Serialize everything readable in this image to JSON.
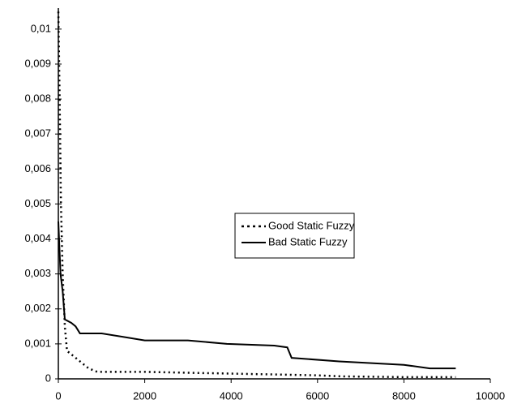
{
  "chart_data": {
    "type": "line",
    "xlim": [
      0,
      10000
    ],
    "xticks": [
      0,
      2000,
      4000,
      6000,
      8000,
      10000
    ],
    "ylim": [
      0,
      0.0106
    ],
    "yticks": [
      0,
      {
        "value": 0.001,
        "label": "0,001"
      },
      {
        "value": 0.002,
        "label": "0,002"
      },
      {
        "value": 0.003,
        "label": "0,003"
      },
      {
        "value": 0.004,
        "label": "0,004"
      },
      {
        "value": 0.005,
        "label": "0,005"
      },
      {
        "value": 0.006,
        "label": "0,006"
      },
      {
        "value": 0.007,
        "label": "0,007"
      },
      {
        "value": 0.008,
        "label": "0,008"
      },
      {
        "value": 0.009,
        "label": "0,009"
      },
      {
        "value": 0.01,
        "label": "0,01"
      }
    ],
    "grid": false,
    "legend": "right",
    "series": [
      {
        "name": "Good Static Fuzzy",
        "color": "#000000",
        "dash": "dotted",
        "x": [
          0,
          30,
          60,
          100,
          150,
          200,
          300,
          400,
          500,
          700,
          900,
          2000,
          4000,
          6000,
          6600,
          8000,
          9200
        ],
        "values": [
          0.0105,
          0.008,
          0.005,
          0.003,
          0.0015,
          0.0008,
          0.0007,
          0.0006,
          0.0005,
          0.0003,
          0.0002,
          0.0002,
          0.00015,
          0.0001,
          7e-05,
          5e-05,
          5e-05
        ]
      },
      {
        "name": "Bad Static Fuzzy",
        "color": "#000000",
        "dash": "solid",
        "x": [
          0,
          50,
          100,
          150,
          300,
          400,
          500,
          1000,
          1500,
          2000,
          3000,
          3900,
          5000,
          5300,
          5400,
          6500,
          8000,
          8600,
          9200
        ],
        "values": [
          0.0045,
          0.003,
          0.0025,
          0.0017,
          0.0016,
          0.0015,
          0.0013,
          0.0013,
          0.0012,
          0.0011,
          0.0011,
          0.001,
          0.00095,
          0.0009,
          0.0006,
          0.0005,
          0.0004,
          0.0003,
          0.0003
        ]
      }
    ]
  }
}
